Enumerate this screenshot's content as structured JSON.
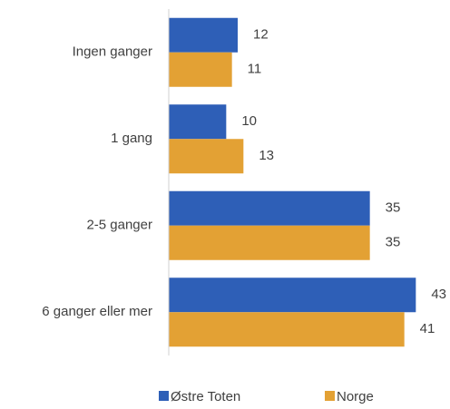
{
  "chart_data": {
    "type": "hbar",
    "categories": [
      "Ingen ganger",
      "1 gang",
      "2-5 ganger",
      "6 ganger eller mer"
    ],
    "series": [
      {
        "name": "Østre Toten",
        "color": "#2e5fb7",
        "values": [
          12,
          10,
          35,
          43
        ]
      },
      {
        "name": "Norge",
        "color": "#e3a134",
        "values": [
          11,
          13,
          35,
          41
        ]
      }
    ],
    "xlim": [
      0,
      45
    ]
  }
}
